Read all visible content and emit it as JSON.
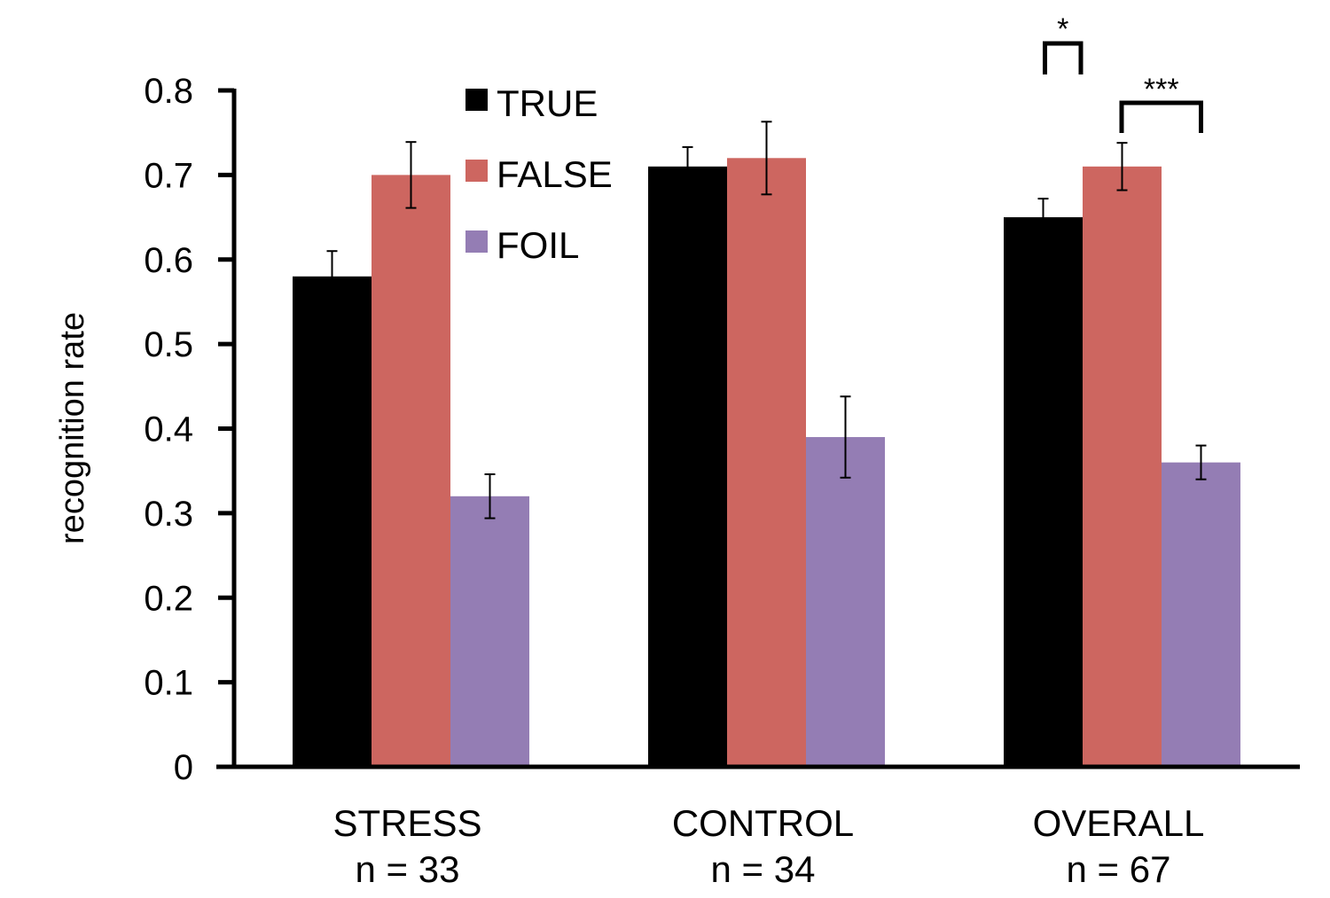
{
  "chart_data": {
    "type": "bar",
    "title": "",
    "xlabel": "",
    "ylabel": "recognition rate",
    "ylim": [
      0,
      0.8
    ],
    "yticks": [
      0,
      0.1,
      0.2,
      0.3,
      0.4,
      0.5,
      0.6,
      0.7,
      0.8
    ],
    "ytick_labels": [
      "0",
      "0.1",
      "0.2",
      "0.3",
      "0.4",
      "0.5",
      "0.6",
      "0.7",
      "0.8"
    ],
    "grid": false,
    "legend_position": "top-left",
    "categories": [
      {
        "name": "STRESS",
        "n_label": "n = 33"
      },
      {
        "name": "CONTROL",
        "n_label": "n = 34"
      },
      {
        "name": "OVERALL",
        "n_label": "n = 67"
      }
    ],
    "series": [
      {
        "name": "TRUE",
        "color": "#000000",
        "values": [
          0.58,
          0.71,
          0.65
        ],
        "errors": [
          0.03,
          0.023,
          0.022
        ]
      },
      {
        "name": "FALSE",
        "color": "#cd6660",
        "values": [
          0.7,
          0.72,
          0.71
        ],
        "errors": [
          0.039,
          0.043,
          0.028
        ]
      },
      {
        "name": "FOIL",
        "color": "#947db4",
        "values": [
          0.32,
          0.39,
          0.36
        ],
        "errors": [
          0.026,
          0.048,
          0.02
        ]
      }
    ],
    "significance": [
      {
        "category": "OVERALL",
        "between": [
          "TRUE",
          "FALSE"
        ],
        "label": "*"
      },
      {
        "category": "OVERALL",
        "between": [
          "FALSE",
          "FOIL"
        ],
        "label": "***"
      }
    ]
  }
}
